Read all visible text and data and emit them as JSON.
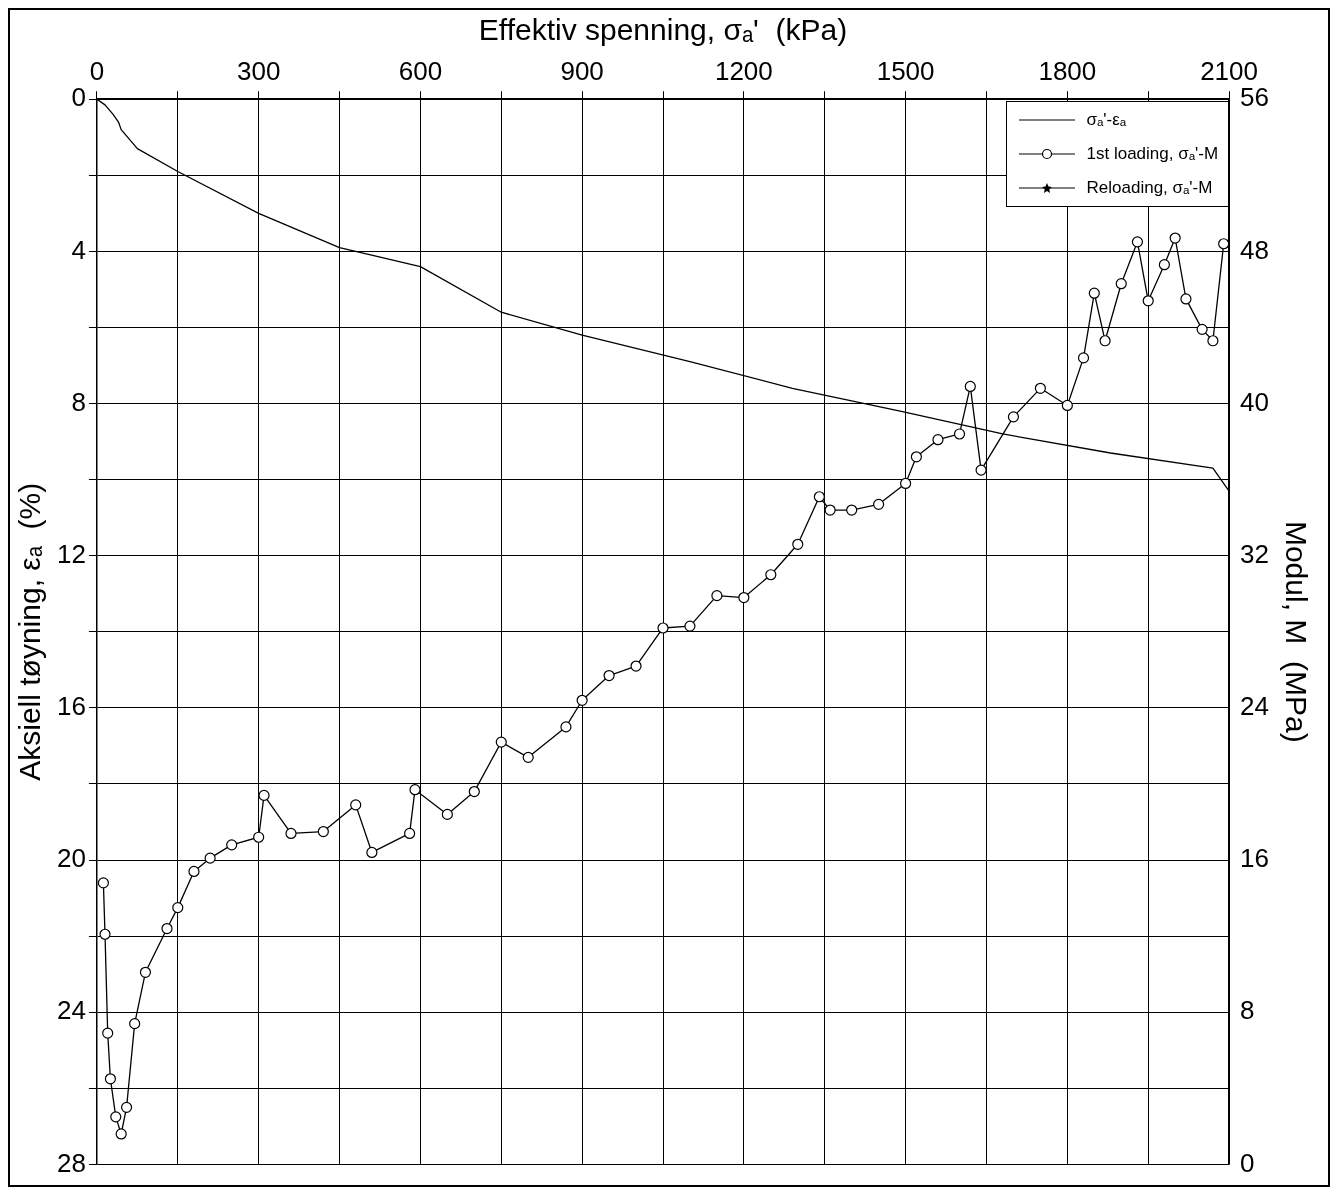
{
  "chart_data": {
    "type": "line",
    "xlabel": "Effektiv spenning, σₐ'  (kPa)",
    "ylabel": "Aksiell tøyning, εₐ  (%)",
    "y2label": "Modul, M  (MPa)",
    "xlim": [
      0,
      2100
    ],
    "xticks": [
      0,
      {
        "value": 150,
        "label": null
      },
      300,
      {
        "value": 450,
        "label": null
      },
      600,
      {
        "value": 750,
        "label": null
      },
      900,
      {
        "value": 1050,
        "label": null
      },
      1200,
      {
        "value": 1350,
        "label": null
      },
      1500,
      {
        "value": 1650,
        "label": null
      },
      1800,
      {
        "value": 1950,
        "label": null
      },
      2100
    ],
    "ylim": [
      28,
      0
    ],
    "yticks": [
      0,
      {
        "value": 2,
        "label": null
      },
      4,
      {
        "value": 6,
        "label": null
      },
      8,
      {
        "value": 10,
        "label": null
      },
      12,
      {
        "value": 14,
        "label": null
      },
      16,
      {
        "value": 18,
        "label": null
      },
      20,
      {
        "value": 22,
        "label": null
      },
      24,
      {
        "value": 26,
        "label": null
      },
      28
    ],
    "y2lim": [
      0,
      56
    ],
    "y2ticks": [
      0,
      8,
      16,
      24,
      32,
      40,
      48,
      56
    ],
    "grid": true,
    "legend": "top right",
    "series": [
      {
        "name": "σₐ'-εₐ",
        "color": "#000000",
        "marker": "none",
        "x": [
          0,
          15,
          30,
          40,
          45,
          75,
          150,
          300,
          450,
          600,
          750,
          900,
          1100,
          1290,
          1490,
          1680,
          1880,
          2070,
          2100
        ],
        "values": [
          0,
          0.15,
          0.4,
          0.6,
          0.8,
          1.3,
          1.9,
          3.0,
          3.9,
          4.4,
          5.6,
          6.2,
          6.9,
          7.6,
          8.2,
          8.8,
          9.3,
          9.7,
          10.3
        ]
      },
      {
        "name": "1st loading, σₐ'-M",
        "color": "#000000",
        "marker": "circle",
        "x": [
          12,
          15,
          20,
          25,
          35,
          45,
          55,
          70,
          90,
          130,
          150,
          180,
          210,
          250,
          300,
          310,
          360,
          420,
          480,
          510,
          580,
          590,
          650,
          700,
          750,
          800,
          870,
          900,
          950,
          1000,
          1050,
          1100,
          1150,
          1200,
          1250,
          1300,
          1340,
          1360,
          1400,
          1450,
          1500,
          1520,
          1560,
          1600,
          1620,
          1640,
          1700,
          1750,
          1800,
          1830,
          1850,
          1870,
          1900,
          1930,
          1950,
          1980,
          2000,
          2020,
          2050,
          2070,
          2090
        ],
        "values": [
          14.8,
          12.1,
          6.9,
          4.5,
          2.5,
          1.6,
          3.0,
          7.4,
          10.1,
          12.4,
          13.5,
          15.4,
          16.1,
          16.8,
          17.2,
          19.4,
          17.4,
          17.5,
          18.9,
          16.4,
          17.4,
          19.7,
          18.4,
          19.6,
          22.2,
          21.4,
          23.0,
          24.4,
          25.7,
          26.2,
          28.2,
          28.3,
          29.9,
          29.8,
          31.0,
          32.6,
          35.1,
          34.4,
          34.4,
          34.7,
          35.8,
          37.2,
          38.1,
          38.4,
          40.9,
          36.5,
          39.3,
          40.8,
          39.9,
          42.4,
          45.8,
          43.3,
          46.3,
          48.5,
          45.4,
          47.3,
          48.7,
          45.5,
          43.9,
          43.3,
          48.4
        ],
        "axis": "y2"
      },
      {
        "name": "Reloading, σₐ'-M",
        "color": "#000000",
        "marker": "star",
        "axis": "y2"
      }
    ]
  }
}
